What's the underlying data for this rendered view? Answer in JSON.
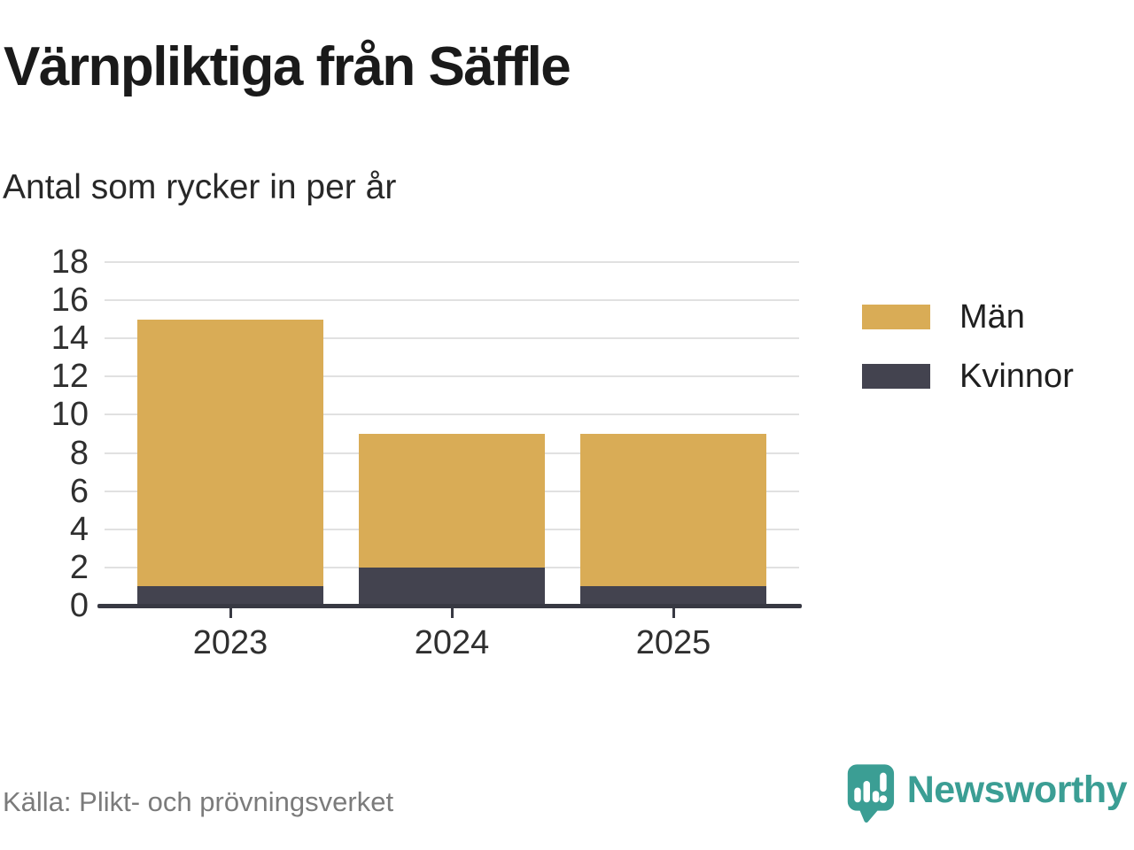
{
  "header": {
    "title": "Värnpliktiga från Säffle",
    "subtitle": "Antal som rycker in per år"
  },
  "chart_data": {
    "type": "bar",
    "stacked": true,
    "title": "Värnpliktiga från Säffle",
    "subtitle": "Antal som rycker in per år",
    "categories": [
      "2023",
      "2024",
      "2025"
    ],
    "series": [
      {
        "name": "Kvinnor",
        "color": "#43434f",
        "values": [
          1,
          2,
          1
        ]
      },
      {
        "name": "Män",
        "color": "#d9ac56",
        "values": [
          14,
          7,
          8
        ]
      }
    ],
    "totals": [
      15,
      9,
      9
    ],
    "xlabel": "",
    "ylabel": "",
    "ylim": [
      0,
      18
    ],
    "ytick_step": 2,
    "grid": true,
    "legend_position": "right"
  },
  "legend": {
    "items": [
      {
        "label": "Män",
        "color": "#d9ac56"
      },
      {
        "label": "Kvinnor",
        "color": "#43434f"
      }
    ]
  },
  "footer": {
    "source": "Källa: Plikt- och prövningsverket",
    "brand": "Newsworthy"
  },
  "colors": {
    "men": "#d9ac56",
    "women": "#43434f",
    "axis": "#383943",
    "gridline": "#e1e1e1",
    "brand_teal": "#3b9e94",
    "source_gray": "#7b7b7b"
  }
}
